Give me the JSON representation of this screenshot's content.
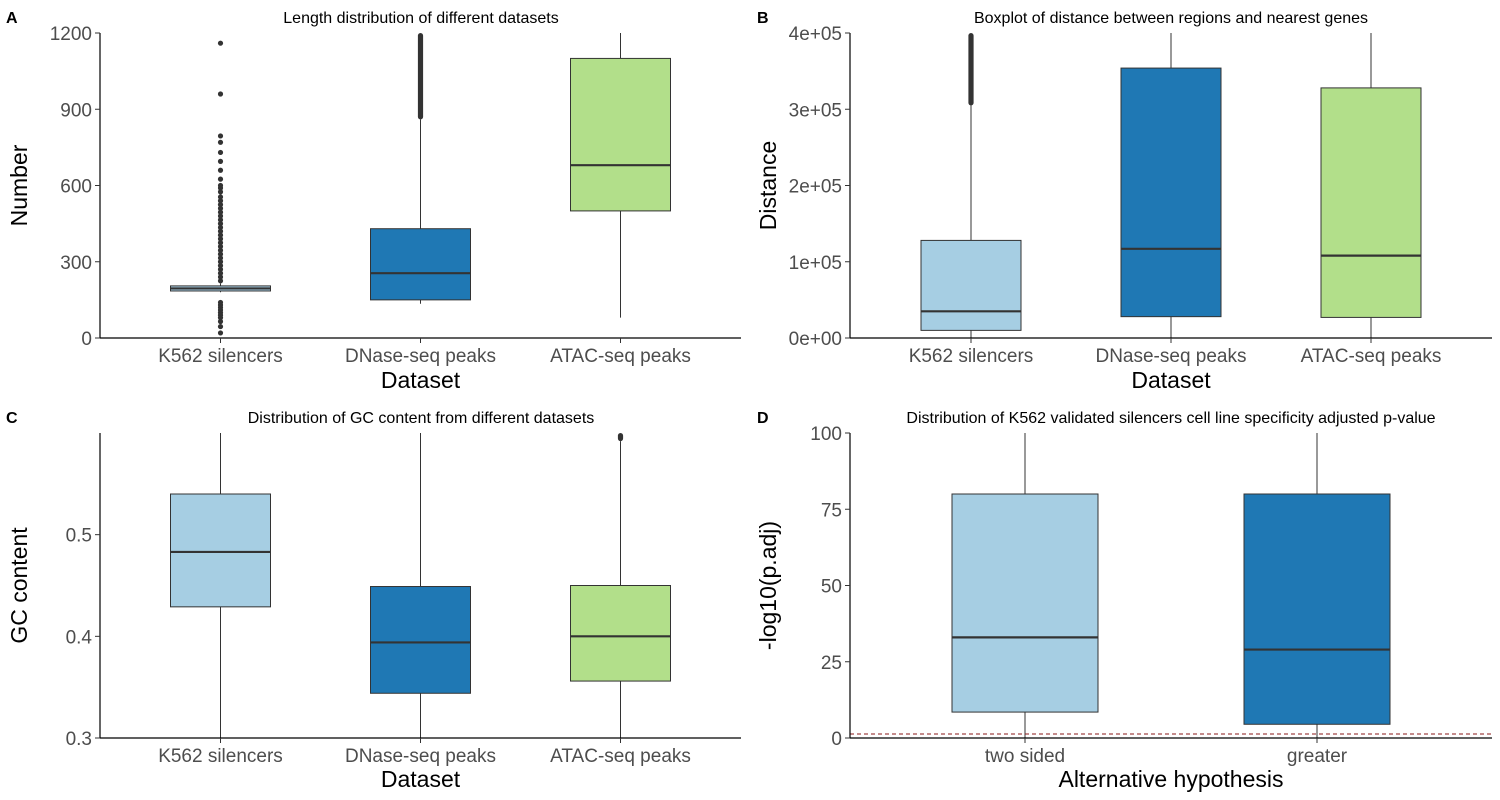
{
  "colors": {
    "k562": "#a6cee3",
    "dnase": "#1f78b4",
    "atac": "#b2df8a",
    "outlier": "#333333",
    "reference_line": "#8b1a1a"
  },
  "chart_data": [
    {
      "panel": "A",
      "type": "boxplot",
      "title": "Length distribution of different datasets",
      "xlabel": "Dataset",
      "ylabel": "Number",
      "ylim": [
        0,
        1200
      ],
      "yticks": [
        0,
        300,
        600,
        900,
        1200
      ],
      "ytick_labels": [
        "0",
        "300",
        "600",
        "900",
        "1200"
      ],
      "grid": false,
      "categories": [
        "K562 silencers",
        "DNase-seq peaks",
        "ATAC-seq peaks"
      ],
      "boxes": [
        {
          "category": "K562 silencers",
          "color_key": "k562",
          "lower_whisker": 180,
          "q1": 185,
          "median": 195,
          "q3": 205,
          "upper_whisker": 215,
          "outliers": [
            20,
            45,
            65,
            80,
            90,
            100,
            110,
            120,
            130,
            140,
            225,
            240,
            255,
            270,
            285,
            300,
            315,
            330,
            345,
            360,
            375,
            390,
            405,
            420,
            435,
            450,
            465,
            480,
            495,
            510,
            525,
            540,
            555,
            575,
            590,
            600,
            625,
            660,
            695,
            730,
            770,
            795,
            960,
            1160
          ]
        },
        {
          "category": "DNase-seq peaks",
          "color_key": "dnase",
          "lower_whisker": 135,
          "q1": 150,
          "median": 255,
          "q3": 430,
          "upper_whisker": 860,
          "outlier_band": [
            860,
            1200
          ]
        },
        {
          "category": "ATAC-seq peaks",
          "color_key": "atac",
          "lower_whisker": 80,
          "q1": 500,
          "median": 680,
          "q3": 1100,
          "upper_whisker": 1200
        }
      ]
    },
    {
      "panel": "B",
      "type": "boxplot",
      "title": "Boxplot of distance between regions and nearest genes",
      "xlabel": "Dataset",
      "ylabel": "Distance",
      "ylim": [
        0,
        400000
      ],
      "yticks": [
        0,
        100000,
        200000,
        300000,
        400000
      ],
      "ytick_labels": [
        "0e+00",
        "1e+05",
        "2e+05",
        "3e+05",
        "4e+05"
      ],
      "grid": false,
      "categories": [
        "K562 silencers",
        "DNase-seq peaks",
        "ATAC-seq peaks"
      ],
      "boxes": [
        {
          "category": "K562 silencers",
          "color_key": "k562",
          "lower_whisker": 0,
          "q1": 10000,
          "median": 35000,
          "q3": 128000,
          "upper_whisker": 305000,
          "outlier_band": [
            305000,
            400000
          ]
        },
        {
          "category": "DNase-seq peaks",
          "color_key": "dnase",
          "lower_whisker": 0,
          "q1": 28000,
          "median": 117000,
          "q3": 354000,
          "upper_whisker": 400000
        },
        {
          "category": "ATAC-seq peaks",
          "color_key": "atac",
          "lower_whisker": 0,
          "q1": 27000,
          "median": 108000,
          "q3": 328000,
          "upper_whisker": 400000
        }
      ]
    },
    {
      "panel": "C",
      "type": "boxplot",
      "title": "Distribution of GC content from different datasets",
      "xlabel": "Dataset",
      "ylabel": "GC content",
      "ylim": [
        0.3,
        0.6
      ],
      "yticks": [
        0.3,
        0.4,
        0.5
      ],
      "ytick_labels": [
        "0.3",
        "0.4",
        "0.5"
      ],
      "grid": false,
      "categories": [
        "K562 silencers",
        "DNase-seq peaks",
        "ATAC-seq peaks"
      ],
      "boxes": [
        {
          "category": "K562 silencers",
          "color_key": "k562",
          "lower_whisker": 0.3,
          "q1": 0.429,
          "median": 0.483,
          "q3": 0.54,
          "upper_whisker": 0.6
        },
        {
          "category": "DNase-seq peaks",
          "color_key": "dnase",
          "lower_whisker": 0.3,
          "q1": 0.344,
          "median": 0.394,
          "q3": 0.449,
          "upper_whisker": 0.6
        },
        {
          "category": "ATAC-seq peaks",
          "color_key": "atac",
          "lower_whisker": 0.3,
          "q1": 0.356,
          "median": 0.4,
          "q3": 0.45,
          "upper_whisker": 0.592,
          "outlier_band": [
            0.592,
            0.6
          ]
        }
      ]
    },
    {
      "panel": "D",
      "type": "boxplot",
      "title": "Distribution of K562 validated silencers cell line specificity adjusted p-value",
      "xlabel": "Alternative hypothesis",
      "ylabel": "-log10(p.adj)",
      "ylim": [
        0,
        100
      ],
      "yticks": [
        0,
        25,
        50,
        75,
        100
      ],
      "ytick_labels": [
        "0",
        "25",
        "50",
        "75",
        "100"
      ],
      "grid": false,
      "reference_line": 1.3,
      "categories": [
        "two sided",
        "greater"
      ],
      "boxes": [
        {
          "category": "two sided",
          "color_key": "k562",
          "lower_whisker": 0,
          "q1": 8.5,
          "median": 33,
          "q3": 80,
          "upper_whisker": 100
        },
        {
          "category": "greater",
          "color_key": "dnase",
          "lower_whisker": 0,
          "q1": 4.5,
          "median": 29,
          "q3": 80,
          "upper_whisker": 100
        }
      ]
    }
  ]
}
